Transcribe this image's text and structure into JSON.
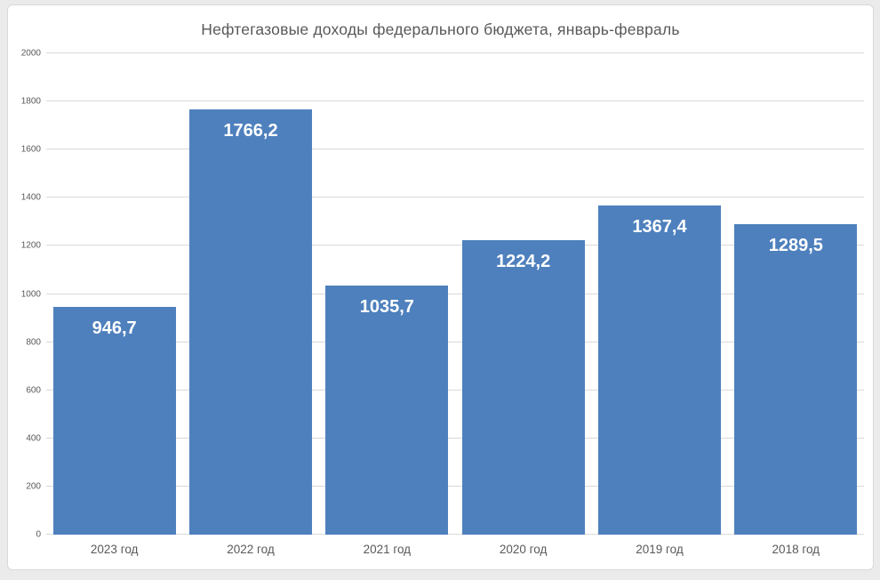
{
  "chart": {
    "colors": {
      "bar": "#4e80bd",
      "text": "#595959",
      "gridline": "#d9d9d9",
      "data_label": "#ffffff",
      "frame_border": "#d9d9d9",
      "frame_background": "#ffffff",
      "page_background": "#ebebeb"
    }
  },
  "chart_data": {
    "type": "bar",
    "title": "Нефтегазовые доходы федерального бюджета, январь-февраль",
    "categories": [
      "2023 год",
      "2022 год",
      "2021 год",
      "2020 год",
      "2019 год",
      "2018 год"
    ],
    "values": [
      946.7,
      1766.2,
      1035.7,
      1224.2,
      1367.4,
      1289.5
    ],
    "value_labels": [
      "946,7",
      "1766,2",
      "1035,7",
      "1224,2",
      "1367,4",
      "1289,5"
    ],
    "xlabel": "",
    "ylabel": "",
    "ylim": [
      0,
      2000
    ],
    "yticks": [
      0,
      200,
      400,
      600,
      800,
      1000,
      1200,
      1400,
      1600,
      1800,
      2000
    ],
    "grid": true,
    "legend": false,
    "data_label_position": "inside-end",
    "bar_color": "#4e80bd"
  }
}
